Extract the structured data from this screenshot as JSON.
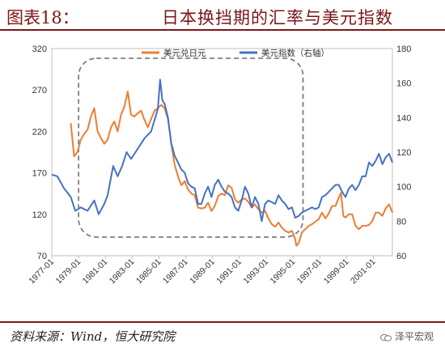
{
  "figure_number": "图表18：",
  "title": "日本换挡期的汇率与美元指数",
  "source": "资料来源：Wind，恒大研究院",
  "watermark": "泽平宏观",
  "colors": {
    "usdjpy": "#ED7D31",
    "dxy": "#4472C4",
    "frame": "#7a1616",
    "highlight_box": "#7f7f7f"
  },
  "icons": {
    "watermark": "wechat-icon"
  },
  "chart_data": {
    "type": "line",
    "x_tick_labels": [
      "1977-01",
      "1979-01",
      "1981-01",
      "1983-01",
      "1985-01",
      "1987-01",
      "1989-01",
      "1991-01",
      "1993-01",
      "1995-01",
      "1997-01",
      "1999-01",
      "2001-01"
    ],
    "xlim": [
      "1977-01",
      "2002-06"
    ],
    "y_left": {
      "lim": [
        70,
        320
      ],
      "ticks": [
        70,
        120,
        170,
        220,
        270,
        320
      ]
    },
    "y_right": {
      "lim": [
        60,
        180
      ],
      "ticks": [
        60,
        80,
        100,
        120,
        140,
        160,
        180
      ]
    },
    "legend_position": "top-center",
    "grid": false,
    "highlight_box": {
      "style": "dashed-rounded",
      "from": "1979-01",
      "to": "1995-10"
    },
    "series": [
      {
        "name": "美元兑日元",
        "axis": "left",
        "points": [
          [
            "1978-06",
            230
          ],
          [
            "1978-09",
            190
          ],
          [
            "1978-12",
            195
          ],
          [
            "1979-03",
            210
          ],
          [
            "1979-06",
            217
          ],
          [
            "1979-09",
            222
          ],
          [
            "1979-12",
            238
          ],
          [
            "1980-03",
            248
          ],
          [
            "1980-06",
            220
          ],
          [
            "1980-09",
            212
          ],
          [
            "1980-12",
            205
          ],
          [
            "1981-03",
            210
          ],
          [
            "1981-06",
            225
          ],
          [
            "1981-09",
            232
          ],
          [
            "1981-12",
            220
          ],
          [
            "1982-03",
            240
          ],
          [
            "1982-06",
            250
          ],
          [
            "1982-09",
            268
          ],
          [
            "1982-12",
            240
          ],
          [
            "1983-03",
            238
          ],
          [
            "1983-06",
            242
          ],
          [
            "1983-09",
            245
          ],
          [
            "1983-12",
            234
          ],
          [
            "1984-03",
            225
          ],
          [
            "1984-06",
            235
          ],
          [
            "1984-09",
            245
          ],
          [
            "1984-12",
            248
          ],
          [
            "1985-03",
            252
          ],
          [
            "1985-06",
            248
          ],
          [
            "1985-09",
            235
          ],
          [
            "1985-12",
            205
          ],
          [
            "1986-03",
            180
          ],
          [
            "1986-06",
            166
          ],
          [
            "1986-09",
            155
          ],
          [
            "1986-12",
            160
          ],
          [
            "1987-03",
            150
          ],
          [
            "1987-06",
            145
          ],
          [
            "1987-09",
            143
          ],
          [
            "1987-12",
            128
          ],
          [
            "1988-03",
            127
          ],
          [
            "1988-06",
            128
          ],
          [
            "1988-09",
            134
          ],
          [
            "1988-12",
            124
          ],
          [
            "1989-03",
            130
          ],
          [
            "1989-06",
            142
          ],
          [
            "1989-09",
            145
          ],
          [
            "1989-12",
            143
          ],
          [
            "1990-03",
            155
          ],
          [
            "1990-06",
            152
          ],
          [
            "1990-09",
            138
          ],
          [
            "1990-12",
            134
          ],
          [
            "1991-03",
            138
          ],
          [
            "1991-06",
            139
          ],
          [
            "1991-09",
            135
          ],
          [
            "1991-12",
            128
          ],
          [
            "1992-03",
            132
          ],
          [
            "1992-06",
            126
          ],
          [
            "1992-09",
            122
          ],
          [
            "1992-12",
            124
          ],
          [
            "1993-03",
            115
          ],
          [
            "1993-06",
            108
          ],
          [
            "1993-09",
            105
          ],
          [
            "1993-12",
            110
          ],
          [
            "1994-03",
            104
          ],
          [
            "1994-06",
            100
          ],
          [
            "1994-09",
            98
          ],
          [
            "1994-12",
            100
          ],
          [
            "1995-03",
            90
          ],
          [
            "1995-04",
            82
          ],
          [
            "1995-06",
            85
          ],
          [
            "1995-09",
            98
          ],
          [
            "1995-12",
            102
          ],
          [
            "1996-03",
            106
          ],
          [
            "1996-06",
            108
          ],
          [
            "1996-09",
            111
          ],
          [
            "1996-12",
            114
          ],
          [
            "1997-03",
            122
          ],
          [
            "1997-06",
            115
          ],
          [
            "1997-09",
            121
          ],
          [
            "1997-12",
            130
          ],
          [
            "1998-03",
            130
          ],
          [
            "1998-06",
            140
          ],
          [
            "1998-08",
            146
          ],
          [
            "1998-10",
            118
          ],
          [
            "1998-12",
            116
          ],
          [
            "1999-03",
            120
          ],
          [
            "1999-06",
            120
          ],
          [
            "1999-09",
            106
          ],
          [
            "1999-12",
            102
          ],
          [
            "2000-03",
            106
          ],
          [
            "2000-06",
            106
          ],
          [
            "2000-09",
            107
          ],
          [
            "2000-12",
            112
          ],
          [
            "2001-03",
            122
          ],
          [
            "2001-06",
            122
          ],
          [
            "2001-09",
            118
          ],
          [
            "2001-12",
            127
          ],
          [
            "2002-03",
            132
          ],
          [
            "2002-06",
            122
          ]
        ]
      },
      {
        "name": "美元指数（右轴）",
        "axis": "right",
        "points": [
          [
            "1977-01",
            107
          ],
          [
            "1977-06",
            106
          ],
          [
            "1977-12",
            99
          ],
          [
            "1978-06",
            94
          ],
          [
            "1978-10",
            86
          ],
          [
            "1979-03",
            88
          ],
          [
            "1979-09",
            86
          ],
          [
            "1980-03",
            92
          ],
          [
            "1980-07",
            84
          ],
          [
            "1980-12",
            90
          ],
          [
            "1981-03",
            95
          ],
          [
            "1981-08",
            112
          ],
          [
            "1981-12",
            106
          ],
          [
            "1982-04",
            112
          ],
          [
            "1982-08",
            120
          ],
          [
            "1982-12",
            116
          ],
          [
            "1983-06",
            122
          ],
          [
            "1983-12",
            128
          ],
          [
            "1984-06",
            132
          ],
          [
            "1984-12",
            145
          ],
          [
            "1985-02",
            162
          ],
          [
            "1985-04",
            150
          ],
          [
            "1985-06",
            148
          ],
          [
            "1985-09",
            140
          ],
          [
            "1985-12",
            125
          ],
          [
            "1986-03",
            118
          ],
          [
            "1986-06",
            114
          ],
          [
            "1986-09",
            110
          ],
          [
            "1986-12",
            108
          ],
          [
            "1987-03",
            102
          ],
          [
            "1987-06",
            100
          ],
          [
            "1987-09",
            99
          ],
          [
            "1987-12",
            90
          ],
          [
            "1988-03",
            90
          ],
          [
            "1988-06",
            96
          ],
          [
            "1988-09",
            100
          ],
          [
            "1988-12",
            94
          ],
          [
            "1989-03",
            101
          ],
          [
            "1989-06",
            104
          ],
          [
            "1989-09",
            100
          ],
          [
            "1989-12",
            97
          ],
          [
            "1990-03",
            96
          ],
          [
            "1990-06",
            94
          ],
          [
            "1990-09",
            88
          ],
          [
            "1990-12",
            86
          ],
          [
            "1991-03",
            92
          ],
          [
            "1991-06",
            100
          ],
          [
            "1991-09",
            96
          ],
          [
            "1991-12",
            88
          ],
          [
            "1992-03",
            94
          ],
          [
            "1992-06",
            90
          ],
          [
            "1992-09",
            80
          ],
          [
            "1992-12",
            90
          ],
          [
            "1993-03",
            92
          ],
          [
            "1993-06",
            91
          ],
          [
            "1993-09",
            90
          ],
          [
            "1993-12",
            95
          ],
          [
            "1994-03",
            92
          ],
          [
            "1994-06",
            90
          ],
          [
            "1994-09",
            87
          ],
          [
            "1994-12",
            88
          ],
          [
            "1995-03",
            82
          ],
          [
            "1995-06",
            83
          ],
          [
            "1995-09",
            85
          ],
          [
            "1995-12",
            86
          ],
          [
            "1996-03",
            87
          ],
          [
            "1996-06",
            88
          ],
          [
            "1996-09",
            87
          ],
          [
            "1996-12",
            88
          ],
          [
            "1997-03",
            94
          ],
          [
            "1997-06",
            95
          ],
          [
            "1997-09",
            97
          ],
          [
            "1997-12",
            99
          ],
          [
            "1998-03",
            101
          ],
          [
            "1998-06",
            101
          ],
          [
            "1998-09",
            97
          ],
          [
            "1998-12",
            94
          ],
          [
            "1999-03",
            99
          ],
          [
            "1999-06",
            101
          ],
          [
            "1999-09",
            98
          ],
          [
            "1999-12",
            101
          ],
          [
            "2000-03",
            106
          ],
          [
            "2000-06",
            106
          ],
          [
            "2000-09",
            114
          ],
          [
            "2000-12",
            112
          ],
          [
            "2001-03",
            115
          ],
          [
            "2001-06",
            119
          ],
          [
            "2001-09",
            113
          ],
          [
            "2001-12",
            117
          ],
          [
            "2002-03",
            119
          ],
          [
            "2002-06",
            114
          ]
        ]
      }
    ]
  }
}
